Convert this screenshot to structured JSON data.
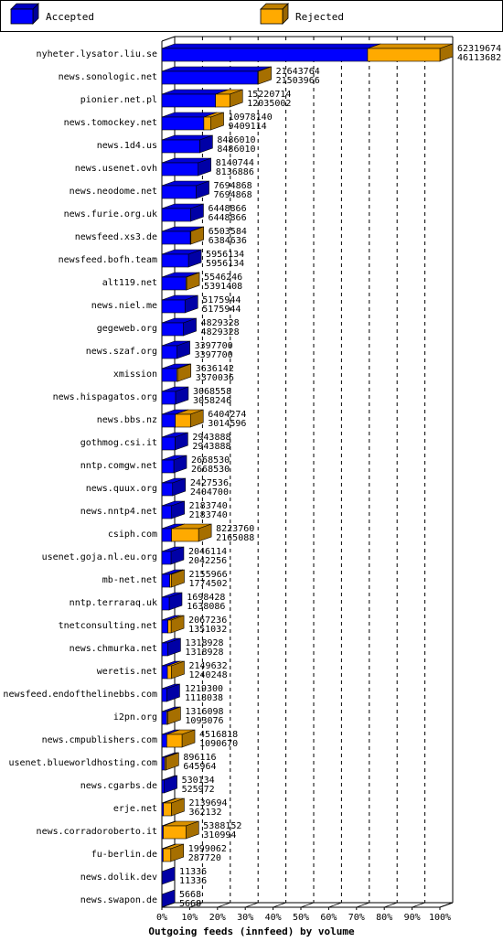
{
  "chart_data": {
    "type": "bar",
    "orientation": "horizontal",
    "stacked": true,
    "style": "3d",
    "title": "Outgoing feeds (innfeed) by volume",
    "xlabel": "",
    "ylabel": "",
    "xlim": [
      0,
      100
    ],
    "grid": true,
    "legend_position": "top",
    "colors": {
      "accepted": "#0000ff",
      "rejected": "#ffaa00",
      "rejected_dark": "#c08000",
      "border": "#000000"
    },
    "legend": [
      {
        "name": "Accepted",
        "key": "accepted"
      },
      {
        "name": "Rejected",
        "key": "rejected"
      }
    ],
    "x_ticks": [
      0,
      10,
      20,
      30,
      40,
      50,
      60,
      70,
      80,
      90,
      100
    ],
    "x_tick_labels": [
      "0%",
      "10%",
      "20%",
      "30%",
      "40%",
      "50%",
      "60%",
      "70%",
      "80%",
      "90%",
      "100%"
    ],
    "categories": [
      "nyheter.lysator.liu.se",
      "news.sonologic.net",
      "pionier.net.pl",
      "news.tomockey.net",
      "news.1d4.us",
      "news.usenet.ovh",
      "news.neodome.net",
      "news.furie.org.uk",
      "newsfeed.xs3.de",
      "newsfeed.bofh.team",
      "alt119.net",
      "news.niel.me",
      "gegeweb.org",
      "news.szaf.org",
      "xmission",
      "news.hispagatos.org",
      "news.bbs.nz",
      "gothmog.csi.it",
      "nntp.comgw.net",
      "news.quux.org",
      "news.nntp4.net",
      "csiph.com",
      "usenet.goja.nl.eu.org",
      "mb-net.net",
      "nntp.terraraq.uk",
      "tnetconsulting.net",
      "news.chmurka.net",
      "weretis.net",
      "newsfeed.endofthelinebbs.com",
      "i2pn.org",
      "news.cmpublishers.com",
      "usenet.blueworldhosting.com",
      "news.cgarbs.de",
      "erje.net",
      "news.corradoroberto.it",
      "fu-berlin.de",
      "news.dolik.dev",
      "news.swapon.de"
    ],
    "offered": [
      62319674,
      21643764,
      15220714,
      10978140,
      8486010,
      8140744,
      7694868,
      6448866,
      6503584,
      5956134,
      5546246,
      5175944,
      4829328,
      3397700,
      3636142,
      3068558,
      6404274,
      2943888,
      2668530,
      2427536,
      2183740,
      8223760,
      2046114,
      2155966,
      1698428,
      2067236,
      1318928,
      2149632,
      1219300,
      1316098,
      4516818,
      896116,
      530134,
      2139694,
      5388152,
      1999062,
      11336,
      5668
    ],
    "accepted": [
      46113682,
      21503966,
      12035002,
      9409114,
      8486010,
      8136886,
      7694868,
      6448866,
      6384636,
      5956134,
      5391408,
      5175944,
      4829328,
      3397700,
      3370036,
      3058246,
      3014596,
      2943888,
      2668530,
      2404700,
      2183740,
      2165088,
      2042256,
      1774502,
      1638086,
      1351032,
      1318928,
      1240248,
      1118038,
      1093076,
      1090670,
      645964,
      525972,
      362132,
      310994,
      287720,
      11336,
      5668
    ],
    "offered_labels": [
      "62319674",
      "21643764",
      "15220714",
      "10978140",
      "8486010",
      "8140744",
      "7694868",
      "6448866",
      "6503584",
      "5956134",
      "5546246",
      "5175944",
      "4829328",
      "3397700",
      "3636142",
      "3068558",
      "6404274",
      "2943888",
      "2668530",
      "2427536",
      "2183740",
      "8223760",
      "2046114",
      "2155966",
      "1698428",
      "2067236",
      "1318928",
      "2149632",
      "1219300",
      "1316098",
      "4516818",
      "896116",
      "530134",
      "2139694",
      "5388152",
      "1999062",
      "11336",
      "5668"
    ],
    "accepted_labels": [
      "46113682",
      "21503966",
      "12035002",
      "9409114",
      "8486010",
      "8136886",
      "7694868",
      "6448866",
      "6384636",
      "5956134",
      "5391408",
      "5175944",
      "4829328",
      "3397700",
      "3370036",
      "3058246",
      "3014596",
      "2943888",
      "2668530",
      "2404700",
      "2183740",
      "2165088",
      "2042256",
      "1774502",
      "1638086",
      "1351032",
      "1318928",
      "1240248",
      "1118038",
      "1093076",
      "1090670",
      "645964",
      "525972",
      "362132",
      "310994",
      "287720",
      "11336",
      "5668"
    ]
  }
}
